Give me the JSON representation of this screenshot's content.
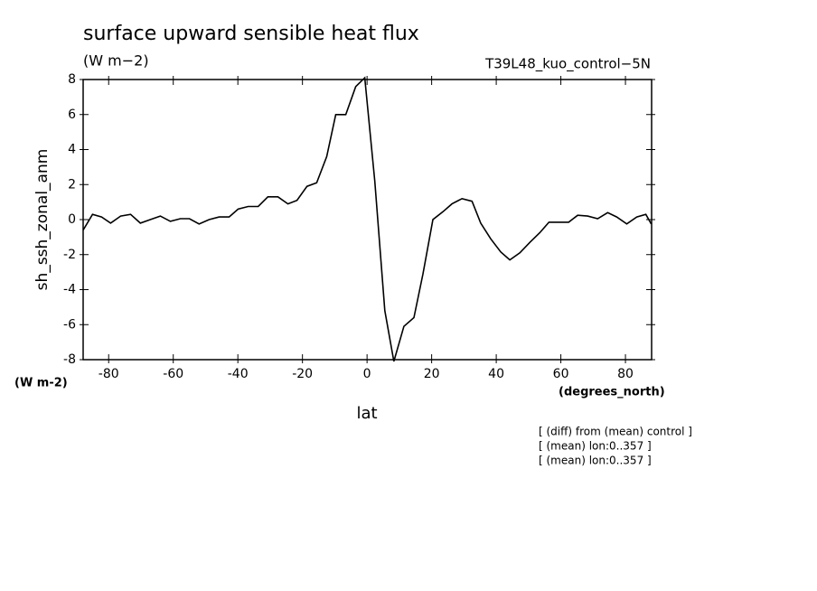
{
  "chart_data": {
    "type": "line",
    "title": "surface upward sensible heat flux",
    "subtitle": "(W m−2)",
    "dataset_label": "T39L48_kuo_control−5N",
    "y_axis_label": "sh_ssh_zonal_anm",
    "y_units_label": "(W m-2)",
    "x_units_label": "(degrees_north)",
    "x_axis_label": "lat",
    "notes": [
      "[ (diff) from (mean) control ]",
      "[ (mean) lon:0..357 ]",
      "[ (mean) lon:0..357 ]"
    ],
    "x": [
      -87.9,
      -85,
      -82.2,
      -79.4,
      -76.3,
      -73.2,
      -70.2,
      -67.1,
      -64,
      -60.9,
      -57.8,
      -55,
      -52,
      -48.9,
      -45.8,
      -42.7,
      -39.9,
      -36.8,
      -33.7,
      -30.7,
      -27.6,
      -24.5,
      -21.7,
      -18.6,
      -15.6,
      -12.5,
      -9.7,
      -6.6,
      -3.5,
      -0.7,
      2.4,
      5.5,
      8.3,
      11.4,
      14.5,
      17.3,
      20.4,
      23.5,
      26.3,
      29.4,
      32.5,
      35.2,
      38.3,
      41.4,
      44.2,
      47.3,
      50.4,
      53.5,
      56.3,
      59.4,
      62.4,
      65.2,
      68.3,
      71.4,
      74.5,
      77.3,
      80.4,
      83.5,
      86.3,
      88
    ],
    "series": [
      {
        "name": "sh_ssh_zonal_anm",
        "color": "#000000",
        "values": [
          -0.6,
          0.3,
          0.15,
          -0.2,
          0.2,
          0.3,
          -0.2,
          0,
          0.2,
          -0.1,
          0.05,
          0.05,
          -0.25,
          0,
          0.15,
          0.15,
          0.6,
          0.75,
          0.75,
          1.3,
          1.3,
          0.9,
          1.1,
          1.9,
          2.1,
          3.6,
          6.0,
          6.0,
          7.6,
          8.1,
          2.2,
          -5.2,
          -8.1,
          -6.1,
          -5.6,
          -3.1,
          0,
          0.45,
          0.9,
          1.2,
          1.05,
          -0.2,
          -1.1,
          -1.85,
          -2.3,
          -1.9,
          -1.3,
          -0.75,
          -0.15,
          -0.15,
          -0.15,
          0.25,
          0.2,
          0.05,
          0.4,
          0.15,
          -0.25,
          0.15,
          0.3,
          -0.25
        ]
      }
    ],
    "xlim": [
      -87.9,
      88.1
    ],
    "xticks": [
      -80,
      -60,
      -40,
      -20,
      0,
      20,
      40,
      60,
      80
    ],
    "ylim": [
      -8,
      8
    ],
    "yticks": [
      -8,
      -6,
      -4,
      -2,
      0,
      2,
      4,
      6,
      8
    ],
    "grid": false
  }
}
